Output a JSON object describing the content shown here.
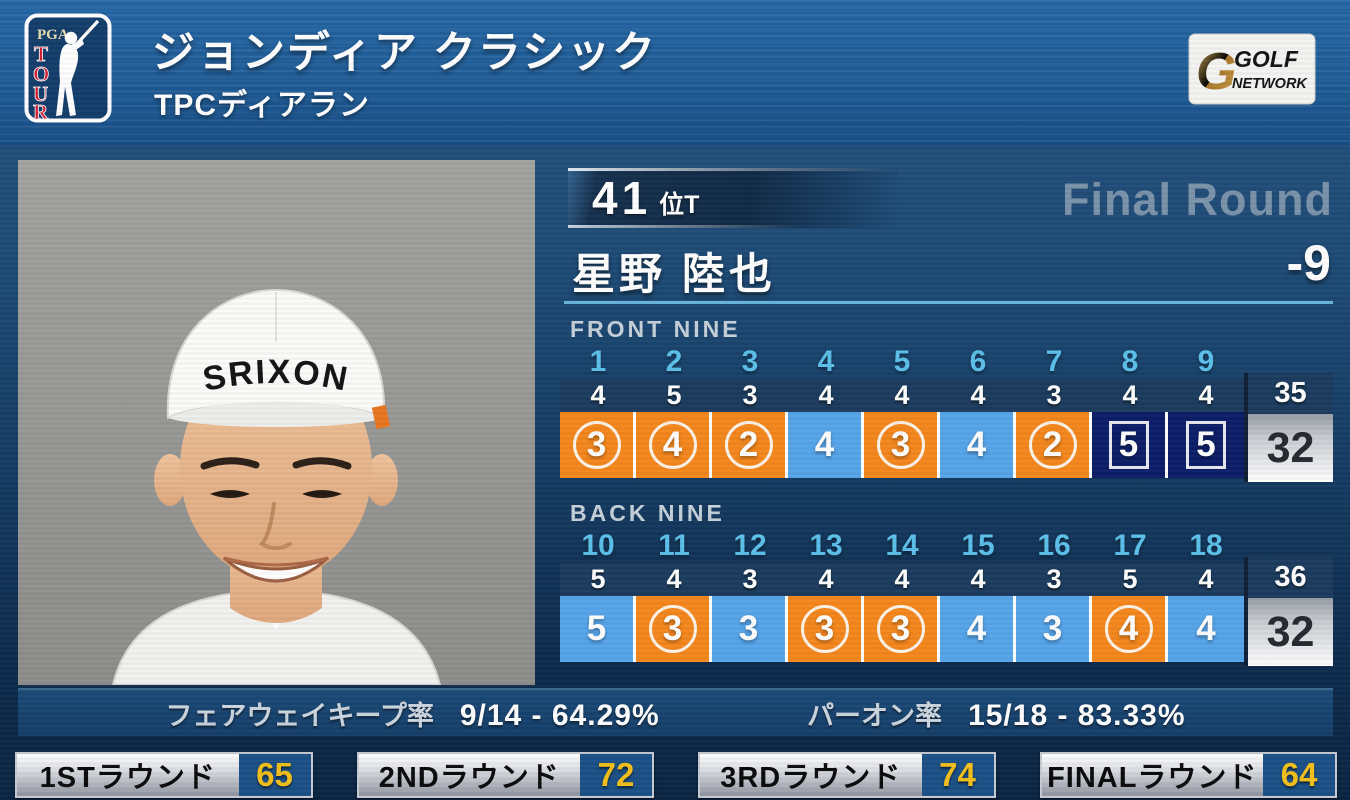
{
  "header": {
    "title": "ジョンディア クラシック",
    "subtitle": "TPCディアラン",
    "pga_logo": {
      "top": "PGA",
      "side": "TOUR"
    },
    "network_logo": {
      "line1": "GOLF",
      "line2": "NETWORK"
    }
  },
  "player": {
    "rank_number": "41",
    "rank_suffix": "位T",
    "round_label": "Final Round",
    "name": "星野 陸也",
    "total_score": "-9",
    "cap_brand": "SRIXON"
  },
  "scorecard": {
    "front": {
      "label": "FRONT NINE",
      "holes": [
        "1",
        "2",
        "3",
        "4",
        "5",
        "6",
        "7",
        "8",
        "9"
      ],
      "pars": [
        "4",
        "5",
        "3",
        "4",
        "4",
        "4",
        "3",
        "4",
        "4"
      ],
      "par_total": "35",
      "scores": [
        {
          "value": "3",
          "type": "birdie"
        },
        {
          "value": "4",
          "type": "birdie"
        },
        {
          "value": "2",
          "type": "birdie"
        },
        {
          "value": "4",
          "type": "par"
        },
        {
          "value": "3",
          "type": "birdie"
        },
        {
          "value": "4",
          "type": "par"
        },
        {
          "value": "2",
          "type": "birdie"
        },
        {
          "value": "5",
          "type": "bogey"
        },
        {
          "value": "5",
          "type": "bogey"
        }
      ],
      "score_total": "32"
    },
    "back": {
      "label": "BACK NINE",
      "holes": [
        "10",
        "11",
        "12",
        "13",
        "14",
        "15",
        "16",
        "17",
        "18"
      ],
      "pars": [
        "5",
        "4",
        "3",
        "4",
        "4",
        "4",
        "3",
        "5",
        "4"
      ],
      "par_total": "36",
      "scores": [
        {
          "value": "5",
          "type": "par"
        },
        {
          "value": "3",
          "type": "birdie"
        },
        {
          "value": "3",
          "type": "par"
        },
        {
          "value": "3",
          "type": "birdie"
        },
        {
          "value": "3",
          "type": "birdie"
        },
        {
          "value": "4",
          "type": "par"
        },
        {
          "value": "3",
          "type": "par"
        },
        {
          "value": "4",
          "type": "birdie"
        },
        {
          "value": "4",
          "type": "par"
        }
      ],
      "score_total": "32"
    }
  },
  "stats": {
    "fairway_label": "フェアウェイキープ率",
    "fairway_value": "9/14 - 64.29%",
    "gir_label": "パーオン率",
    "gir_value": "15/18 - 83.33%"
  },
  "rounds": [
    {
      "label": "1STラウンド",
      "score": "65"
    },
    {
      "label": "2NDラウンド",
      "score": "72"
    },
    {
      "label": "3RDラウンド",
      "score": "74"
    },
    {
      "label": "FINALラウンド",
      "score": "64"
    }
  ],
  "colors": {
    "birdie_orange": "#f5871d",
    "par_blue": "#56a5ea",
    "bogey_navy": "#0d1e68",
    "hole_number_blue": "#5cc0ea",
    "round_score_gold": "#f3c11c",
    "header_blue": "#1f5c97",
    "panel_navy": "#153a60"
  }
}
